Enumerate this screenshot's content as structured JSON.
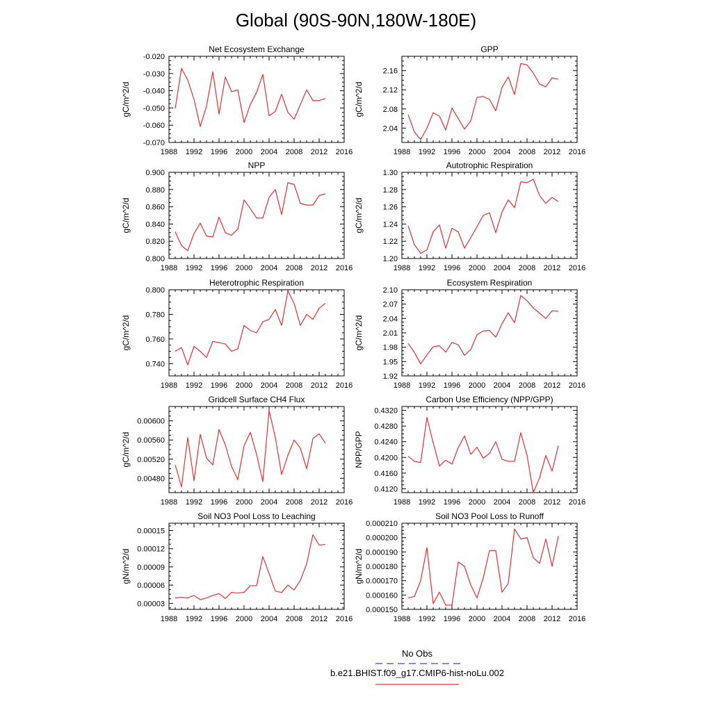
{
  "page": {
    "title": "Global (90S-90N,180W-180E)"
  },
  "legend": {
    "entries": [
      {
        "label": "No Obs",
        "color": "#4040c0",
        "style": "dashed"
      },
      {
        "label": "b.e21.BHIST.f09_g17.CMIP6-hist-noLu.002",
        "color": "#e03030",
        "style": "solid"
      }
    ]
  },
  "chart_data": [
    {
      "type": "line",
      "title": "Net Ecosystem Exchange",
      "ylabel": "gC/m^2/d",
      "xlim": [
        1988,
        2016
      ],
      "xticks": [
        1988,
        1992,
        1996,
        2000,
        2004,
        2008,
        2012,
        2016
      ],
      "xticklabels": [
        "1988",
        "1992",
        "1996",
        "2000",
        "2004",
        "2008",
        "2012",
        "2016"
      ],
      "ylim": [
        -0.07,
        -0.02
      ],
      "yticks": [
        -0.07,
        -0.06,
        -0.05,
        -0.04,
        -0.03,
        -0.02
      ],
      "yticklabels": [
        "-0.070",
        "-0.060",
        "-0.050",
        "-0.040",
        "-0.030",
        "-0.020"
      ],
      "grid": false,
      "series": [
        {
          "color": "#e03030",
          "x": [
            1989,
            1990,
            1991,
            1992,
            1993,
            1994,
            1995,
            1996,
            1997,
            1998,
            1999,
            2000,
            2001,
            2002,
            2003,
            2004,
            2005,
            2006,
            2007,
            2008,
            2009,
            2010,
            2011,
            2012,
            2013
          ],
          "y": [
            -0.0503,
            -0.027,
            -0.0337,
            -0.045,
            -0.0607,
            -0.049,
            -0.029,
            -0.0535,
            -0.032,
            -0.0405,
            -0.0395,
            -0.0585,
            -0.048,
            -0.041,
            -0.0305,
            -0.0545,
            -0.052,
            -0.042,
            -0.0525,
            -0.0565,
            -0.048,
            -0.0395,
            -0.0457,
            -0.0457,
            -0.0445
          ]
        }
      ]
    },
    {
      "type": "line",
      "title": "GPP",
      "ylabel": "gC/m^2/d",
      "xlim": [
        1988,
        2016
      ],
      "xticks": [
        1988,
        1992,
        1996,
        2000,
        2004,
        2008,
        2012,
        2016
      ],
      "xticklabels": [
        "1988",
        "1992",
        "1996",
        "2000",
        "2004",
        "2008",
        "2012",
        "2016"
      ],
      "ylim": [
        2.01,
        2.19
      ],
      "yticks": [
        2.04,
        2.08,
        2.12,
        2.16
      ],
      "yticklabels": [
        "2.04",
        "2.08",
        "2.12",
        "2.16"
      ],
      "grid": false,
      "series": [
        {
          "color": "#e03030",
          "x": [
            1989,
            1990,
            1991,
            1992,
            1993,
            1994,
            1995,
            1996,
            1997,
            1998,
            1999,
            2000,
            2001,
            2002,
            2003,
            2004,
            2005,
            2006,
            2007,
            2008,
            2009,
            2010,
            2011,
            2012,
            2013
          ],
          "y": [
            2.068,
            2.032,
            2.016,
            2.04,
            2.072,
            2.065,
            2.036,
            2.082,
            2.06,
            2.038,
            2.055,
            2.104,
            2.106,
            2.1,
            2.076,
            2.125,
            2.147,
            2.11,
            2.175,
            2.172,
            2.155,
            2.132,
            2.126,
            2.145,
            2.142
          ]
        }
      ]
    },
    {
      "type": "line",
      "title": "NPP",
      "ylabel": "gC/m^2/d",
      "xlim": [
        1988,
        2016
      ],
      "xticks": [
        1988,
        1992,
        1996,
        2000,
        2004,
        2008,
        2012,
        2016
      ],
      "xticklabels": [
        "1988",
        "1992",
        "1996",
        "2000",
        "2004",
        "2008",
        "2012",
        "2016"
      ],
      "ylim": [
        0.8,
        0.9
      ],
      "yticks": [
        0.8,
        0.82,
        0.84,
        0.86,
        0.88,
        0.9
      ],
      "yticklabels": [
        "0.800",
        "0.820",
        "0.840",
        "0.860",
        "0.880",
        "0.900"
      ],
      "grid": false,
      "series": [
        {
          "color": "#e03030",
          "x": [
            1989,
            1990,
            1991,
            1992,
            1993,
            1994,
            1995,
            1996,
            1997,
            1998,
            1999,
            2000,
            2001,
            2002,
            2003,
            2004,
            2005,
            2006,
            2007,
            2008,
            2009,
            2010,
            2011,
            2012,
            2013
          ],
          "y": [
            0.831,
            0.815,
            0.809,
            0.829,
            0.841,
            0.826,
            0.825,
            0.848,
            0.83,
            0.827,
            0.834,
            0.868,
            0.858,
            0.847,
            0.847,
            0.871,
            0.88,
            0.851,
            0.888,
            0.886,
            0.864,
            0.862,
            0.862,
            0.873,
            0.875
          ]
        }
      ]
    },
    {
      "type": "line",
      "title": "Autotrophic Respiration",
      "ylabel": "gC/m^2/d",
      "xlim": [
        1988,
        2016
      ],
      "xticks": [
        1988,
        1992,
        1996,
        2000,
        2004,
        2008,
        2012,
        2016
      ],
      "xticklabels": [
        "1988",
        "1992",
        "1996",
        "2000",
        "2004",
        "2008",
        "2012",
        "2016"
      ],
      "ylim": [
        1.2,
        1.3
      ],
      "yticks": [
        1.2,
        1.22,
        1.24,
        1.26,
        1.28,
        1.3
      ],
      "yticklabels": [
        "1.20",
        "1.22",
        "1.24",
        "1.26",
        "1.28",
        "1.30"
      ],
      "grid": false,
      "series": [
        {
          "color": "#e03030",
          "x": [
            1989,
            1990,
            1991,
            1992,
            1993,
            1994,
            1995,
            1996,
            1997,
            1998,
            1999,
            2000,
            2001,
            2002,
            2003,
            2004,
            2005,
            2006,
            2007,
            2008,
            2009,
            2010,
            2011,
            2012,
            2013
          ],
          "y": [
            1.238,
            1.216,
            1.206,
            1.21,
            1.231,
            1.239,
            1.212,
            1.235,
            1.231,
            1.212,
            1.224,
            1.237,
            1.25,
            1.253,
            1.23,
            1.254,
            1.268,
            1.259,
            1.289,
            1.288,
            1.292,
            1.273,
            1.264,
            1.271,
            1.266
          ]
        }
      ]
    },
    {
      "type": "line",
      "title": "Heterotrophic Respiration",
      "ylabel": "gC/m^2/d",
      "xlim": [
        1988,
        2016
      ],
      "xticks": [
        1988,
        1992,
        1996,
        2000,
        2004,
        2008,
        2012,
        2016
      ],
      "xticklabels": [
        "1988",
        "1992",
        "1996",
        "2000",
        "2004",
        "2008",
        "2012",
        "2016"
      ],
      "ylim": [
        0.73,
        0.8
      ],
      "yticks": [
        0.74,
        0.76,
        0.78,
        0.8
      ],
      "yticklabels": [
        "0.740",
        "0.760",
        "0.780",
        "0.800"
      ],
      "grid": false,
      "series": [
        {
          "color": "#e03030",
          "x": [
            1989,
            1990,
            1991,
            1992,
            1993,
            1994,
            1995,
            1996,
            1997,
            1998,
            1999,
            2000,
            2001,
            2002,
            2003,
            2004,
            2005,
            2006,
            2007,
            2008,
            2009,
            2010,
            2011,
            2012,
            2013
          ],
          "y": [
            0.75,
            0.753,
            0.739,
            0.754,
            0.75,
            0.745,
            0.758,
            0.757,
            0.756,
            0.75,
            0.752,
            0.771,
            0.767,
            0.765,
            0.774,
            0.776,
            0.784,
            0.771,
            0.799,
            0.789,
            0.771,
            0.78,
            0.776,
            0.785,
            0.789
          ]
        }
      ]
    },
    {
      "type": "line",
      "title": "Ecosystem Respiration",
      "ylabel": "gC/m^2/d",
      "xlim": [
        1988,
        2016
      ],
      "xticks": [
        1988,
        1992,
        1996,
        2000,
        2004,
        2008,
        2012,
        2016
      ],
      "xticklabels": [
        "1988",
        "1992",
        "1996",
        "2000",
        "2004",
        "2008",
        "2012",
        "2016"
      ],
      "ylim": [
        1.92,
        2.1
      ],
      "yticks": [
        1.92,
        1.95,
        1.98,
        2.01,
        2.04,
        2.07,
        2.1
      ],
      "yticklabels": [
        "1.92",
        "1.95",
        "1.98",
        "2.01",
        "2.04",
        "2.07",
        "2.10"
      ],
      "grid": false,
      "series": [
        {
          "color": "#e03030",
          "x": [
            1989,
            1990,
            1991,
            1992,
            1993,
            1994,
            1995,
            1996,
            1997,
            1998,
            1999,
            2000,
            2001,
            2002,
            2003,
            2004,
            2005,
            2006,
            2007,
            2008,
            2009,
            2010,
            2011,
            2012,
            2013
          ],
          "y": [
            1.988,
            1.969,
            1.945,
            1.964,
            1.981,
            1.983,
            1.97,
            1.99,
            1.985,
            1.963,
            1.975,
            2.006,
            2.014,
            2.015,
            2.001,
            2.029,
            2.052,
            2.031,
            2.088,
            2.077,
            2.062,
            2.051,
            2.04,
            2.056,
            2.055
          ]
        }
      ]
    },
    {
      "type": "line",
      "title": "Gridcell Surface CH4 Flux",
      "ylabel": "gC/m^2/d",
      "xlim": [
        1988,
        2016
      ],
      "xticks": [
        1988,
        1992,
        1996,
        2000,
        2004,
        2008,
        2012,
        2016
      ],
      "xticklabels": [
        "1988",
        "1992",
        "1996",
        "2000",
        "2004",
        "2008",
        "2012",
        "2016"
      ],
      "ylim": [
        0.0045,
        0.0063
      ],
      "yticks": [
        0.0048,
        0.0052,
        0.0056,
        0.006
      ],
      "yticklabels": [
        "0.00480",
        "0.00520",
        "0.00560",
        "0.00600"
      ],
      "grid": false,
      "series": [
        {
          "color": "#e03030",
          "x": [
            1989,
            1990,
            1991,
            1992,
            1993,
            1994,
            1995,
            1996,
            1997,
            1998,
            1999,
            2000,
            2001,
            2002,
            2003,
            2004,
            2005,
            2006,
            2007,
            2008,
            2009,
            2010,
            2011,
            2012,
            2013
          ],
          "y": [
            0.00508,
            0.00462,
            0.00565,
            0.00475,
            0.00572,
            0.00522,
            0.00508,
            0.00582,
            0.0055,
            0.00505,
            0.00477,
            0.00548,
            0.00576,
            0.0053,
            0.00473,
            0.00622,
            0.00565,
            0.00488,
            0.00528,
            0.0056,
            0.00543,
            0.005,
            0.00563,
            0.00573,
            0.00553
          ]
        }
      ]
    },
    {
      "type": "line",
      "title": "Carbon Use Efficiency (NPP/GPP)",
      "ylabel": "NPP/GPP",
      "xlim": [
        1988,
        2016
      ],
      "xticks": [
        1988,
        1992,
        1996,
        2000,
        2004,
        2008,
        2012,
        2016
      ],
      "xticklabels": [
        "1988",
        "1992",
        "1996",
        "2000",
        "2004",
        "2008",
        "2012",
        "2016"
      ],
      "ylim": [
        0.411,
        0.433
      ],
      "yticks": [
        0.412,
        0.416,
        0.42,
        0.424,
        0.428,
        0.432
      ],
      "yticklabels": [
        "0.4120",
        "0.4160",
        "0.4200",
        "0.4240",
        "0.4280",
        "0.4320"
      ],
      "grid": false,
      "series": [
        {
          "color": "#e03030",
          "x": [
            1989,
            1990,
            1991,
            1992,
            1993,
            1994,
            1995,
            1996,
            1997,
            1998,
            1999,
            2000,
            2001,
            2002,
            2003,
            2004,
            2005,
            2006,
            2007,
            2008,
            2009,
            2010,
            2011,
            2012,
            2013
          ],
          "y": [
            0.4203,
            0.419,
            0.4187,
            0.4302,
            0.4237,
            0.4178,
            0.4193,
            0.4183,
            0.4225,
            0.4255,
            0.4208,
            0.4226,
            0.4198,
            0.421,
            0.424,
            0.4195,
            0.419,
            0.419,
            0.4263,
            0.4205,
            0.411,
            0.4148,
            0.4205,
            0.4165,
            0.423
          ]
        }
      ]
    },
    {
      "type": "line",
      "title": "Soil NO3 Pool Loss to Leaching",
      "ylabel": "gN/m^2/d",
      "xlim": [
        1988,
        2016
      ],
      "xticks": [
        1988,
        1992,
        1996,
        2000,
        2004,
        2008,
        2012,
        2016
      ],
      "xticklabels": [
        "1988",
        "1992",
        "1996",
        "2000",
        "2004",
        "2008",
        "2012",
        "2016"
      ],
      "ylim": [
        2e-05,
        0.000162
      ],
      "yticks": [
        3e-05,
        6e-05,
        9e-05,
        0.00012,
        0.00015
      ],
      "yticklabels": [
        "0.00003",
        "0.00006",
        "0.00009",
        "0.00012",
        "0.00015"
      ],
      "grid": false,
      "series": [
        {
          "color": "#e03030",
          "x": [
            1989,
            1990,
            1991,
            1992,
            1993,
            1994,
            1995,
            1996,
            1997,
            1998,
            1999,
            2000,
            2001,
            2002,
            2003,
            2004,
            2005,
            2006,
            2007,
            2008,
            2009,
            2010,
            2011,
            2012,
            2013
          ],
          "y": [
            3.9e-05,
            4e-05,
            3.9e-05,
            4.3e-05,
            3.6e-05,
            3.9e-05,
            4.3e-05,
            4.6e-05,
            3.8e-05,
            4.8e-05,
            4.7e-05,
            4.8e-05,
            5.9e-05,
            5.9e-05,
            0.000107,
            7.9e-05,
            5e-05,
            4.8e-05,
            6e-05,
            5.2e-05,
            6.8e-05,
            9.5e-05,
            0.000143,
            0.000126,
            0.000127
          ]
        }
      ]
    },
    {
      "type": "line",
      "title": "Soil NO3 Pool Loss to Runoff",
      "ylabel": "gN/m^2/d",
      "xlim": [
        1988,
        2016
      ],
      "xticks": [
        1988,
        1992,
        1996,
        2000,
        2004,
        2008,
        2012,
        2016
      ],
      "xticklabels": [
        "1988",
        "1992",
        "1996",
        "2000",
        "2004",
        "2008",
        "2012",
        "2016"
      ],
      "ylim": [
        0.00015,
        0.00021
      ],
      "yticks": [
        0.00015,
        0.00016,
        0.00017,
        0.00018,
        0.00019,
        0.0002,
        0.00021
      ],
      "yticklabels": [
        "0.000150",
        "0.000160",
        "0.000170",
        "0.000180",
        "0.000190",
        "0.000200",
        "0.000210"
      ],
      "grid": false,
      "series": [
        {
          "color": "#e03030",
          "x": [
            1989,
            1990,
            1991,
            1992,
            1993,
            1994,
            1995,
            1996,
            1997,
            1998,
            1999,
            2000,
            2001,
            2002,
            2003,
            2004,
            2005,
            2006,
            2007,
            2008,
            2009,
            2010,
            2011,
            2012,
            2013
          ],
          "y": [
            0.000158,
            0.000159,
            0.00017,
            0.000193,
            0.000154,
            0.000162,
            0.000153,
            0.000153,
            0.000183,
            0.00018,
            0.000167,
            0.000158,
            0.000172,
            0.000191,
            0.000191,
            0.000162,
            0.000168,
            0.000206,
            0.000199,
            0.0002,
            0.000186,
            0.000182,
            0.000199,
            0.00018,
            0.000201
          ]
        }
      ]
    }
  ]
}
